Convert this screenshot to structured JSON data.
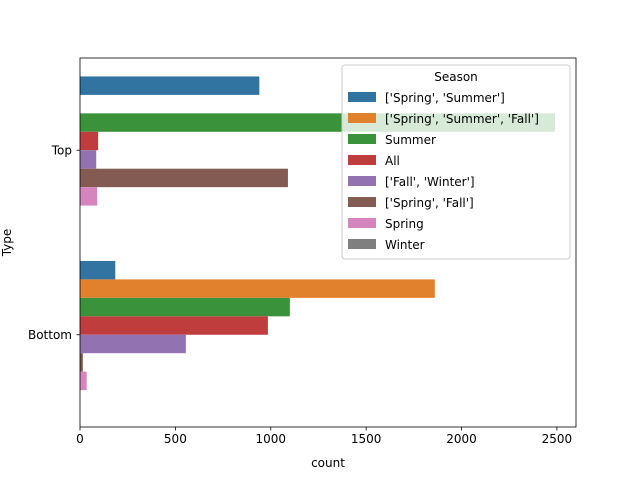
{
  "chart_data": {
    "type": "bar",
    "orientation": "horizontal",
    "xlabel": "count",
    "ylabel": "Type",
    "xlim": [
      0,
      2600
    ],
    "xticks": [
      0,
      500,
      1000,
      1500,
      2000,
      2500
    ],
    "categories": [
      "Top",
      "Bottom"
    ],
    "legend": {
      "title": "Season",
      "placement": "upper right"
    },
    "series": [
      {
        "name": "['Spring', 'Summer']",
        "color": "#3274a1",
        "values": [
          940,
          185
        ]
      },
      {
        "name": "['Spring', 'Summer', 'Fall']",
        "color": "#e1812c",
        "values": [
          0,
          1860
        ]
      },
      {
        "name": "Summer",
        "color": "#3a923a",
        "values": [
          2490,
          1100
        ]
      },
      {
        "name": "All",
        "color": "#c03d3e",
        "values": [
          95,
          985
        ]
      },
      {
        "name": "['Fall', 'Winter']",
        "color": "#9372b2",
        "values": [
          85,
          555
        ]
      },
      {
        "name": "['Spring', 'Fall']",
        "color": "#845b53",
        "values": [
          1090,
          15
        ]
      },
      {
        "name": "Spring",
        "color": "#d684bd",
        "values": [
          90,
          35
        ]
      },
      {
        "name": "Winter",
        "color": "#7f7f7f",
        "values": [
          0,
          0
        ]
      }
    ]
  }
}
